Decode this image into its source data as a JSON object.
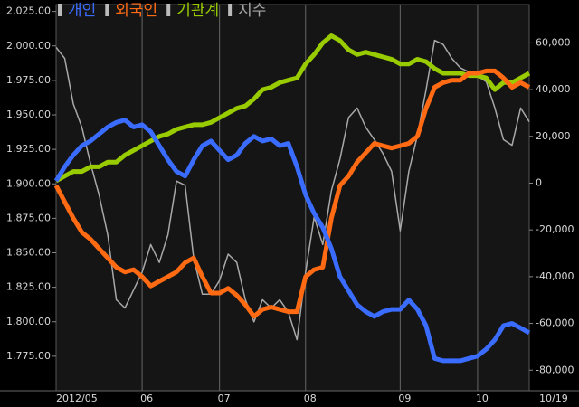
{
  "chart_data": {
    "type": "line",
    "categories": [
      "2012/05",
      null,
      null,
      null,
      null,
      null,
      null,
      null,
      null,
      null,
      "06",
      null,
      null,
      null,
      null,
      null,
      null,
      null,
      null,
      "07",
      null,
      null,
      null,
      null,
      null,
      null,
      null,
      null,
      null,
      "08",
      null,
      null,
      null,
      null,
      null,
      null,
      null,
      null,
      null,
      null,
      "09",
      null,
      null,
      null,
      null,
      null,
      null,
      null,
      null,
      "10",
      null,
      null,
      null,
      null,
      null,
      "10/19"
    ],
    "series": [
      {
        "name": "개인",
        "color": "#3a6cff",
        "axis": "y2",
        "values": [
          1000,
          7000,
          12000,
          16000,
          18000,
          21000,
          24000,
          26000,
          27000,
          24000,
          25000,
          22000,
          16000,
          10000,
          5000,
          3000,
          10000,
          16000,
          18000,
          14000,
          10000,
          12000,
          17000,
          20000,
          18000,
          19000,
          16000,
          17000,
          7000,
          -5000,
          -13000,
          -19000,
          -28000,
          -40000,
          -46000,
          -52000,
          -55000,
          -57000,
          -55000,
          -54000,
          -54000,
          -50000,
          -54000,
          -61000,
          -75000,
          -76000,
          -76000,
          -76000,
          -75000,
          -74000,
          -71000,
          -67000,
          -61000,
          -60000,
          -62000,
          -64000
        ]
      },
      {
        "name": "외국인",
        "color": "#ff6a13",
        "axis": "y2",
        "values": [
          -1000,
          -8000,
          -15000,
          -21000,
          -24000,
          -28000,
          -32000,
          -36000,
          -38000,
          -37000,
          -40000,
          -44000,
          -42000,
          -40000,
          -38000,
          -34000,
          -32000,
          -40000,
          -47000,
          -47000,
          -45000,
          -48000,
          -52000,
          -57000,
          -54000,
          -53000,
          -54000,
          -55000,
          -55000,
          -40000,
          -37000,
          -36000,
          -15000,
          -1000,
          3000,
          9000,
          13000,
          17000,
          16000,
          15000,
          16000,
          17000,
          20000,
          32000,
          41000,
          43000,
          44000,
          44000,
          47000,
          47000,
          48000,
          48000,
          45000,
          41000,
          43000,
          41000
        ]
      },
      {
        "name": "기관계",
        "color": "#99cc00",
        "axis": "y2",
        "values": [
          1000,
          3000,
          5000,
          5000,
          7000,
          7000,
          9000,
          9000,
          12000,
          14000,
          16000,
          18000,
          20000,
          21000,
          23000,
          24000,
          25000,
          25000,
          26000,
          28000,
          30000,
          32000,
          33000,
          36000,
          40000,
          41000,
          43000,
          44000,
          45000,
          51000,
          55000,
          60000,
          63000,
          61000,
          57000,
          55000,
          56000,
          55000,
          54000,
          53000,
          51000,
          51000,
          53000,
          52000,
          49000,
          47000,
          47000,
          47000,
          46000,
          46000,
          45000,
          40000,
          43000,
          43000,
          45000,
          47000
        ]
      },
      {
        "name": "지수",
        "color": "#a8a8a8",
        "axis": "y",
        "values": [
          1999,
          1991,
          1958,
          1941,
          1915,
          1892,
          1863,
          1816,
          1810,
          1823,
          1836,
          1856,
          1843,
          1863,
          1902,
          1899,
          1846,
          1820,
          1820,
          1830,
          1849,
          1843,
          1816,
          1800,
          1816,
          1810,
          1816,
          1807,
          1787,
          1836,
          1876,
          1856,
          1895,
          1918,
          1948,
          1955,
          1941,
          1932,
          1922,
          1909,
          1866,
          1909,
          1935,
          1968,
          2004,
          2001,
          1991,
          1984,
          1981,
          1978,
          1974,
          1955,
          1932,
          1928,
          1955,
          1945
        ]
      }
    ],
    "ylim": [
      1750,
      2030
    ],
    "yticks": [
      {
        "value": 1775,
        "label": "1,775.00"
      },
      {
        "value": 1800,
        "label": "1,800.00"
      },
      {
        "value": 1825,
        "label": "1,825.00"
      },
      {
        "value": 1850,
        "label": "1,850.00"
      },
      {
        "value": 1875,
        "label": "1,875.00"
      },
      {
        "value": 1900,
        "label": "1,900.00"
      },
      {
        "value": 1925,
        "label": "1,925.00"
      },
      {
        "value": 1950,
        "label": "1,950.00"
      },
      {
        "value": 1975,
        "label": "1,975.00"
      },
      {
        "value": 2000,
        "label": "2,000.00"
      },
      {
        "value": 2025,
        "label": "2,025.00"
      }
    ],
    "y2lim": [
      -88800,
      76400
    ],
    "y2ticks": [
      {
        "value": -80000,
        "label": "-80,000"
      },
      {
        "value": -60000,
        "label": "-60,000"
      },
      {
        "value": -40000,
        "label": "-40,000"
      },
      {
        "value": -20000,
        "label": "-20,000"
      },
      0,
      {
        "value": 20000,
        "label": "20,000"
      },
      {
        "value": 40000,
        "label": "40,000"
      },
      {
        "value": 60000,
        "label": "60,000"
      }
    ],
    "x_grid": true,
    "legend": "top-left"
  }
}
